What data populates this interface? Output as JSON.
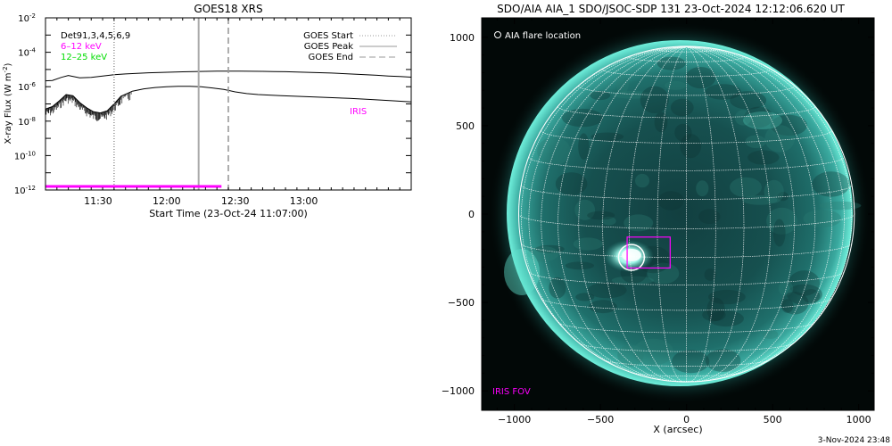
{
  "chart_data": [
    {
      "type": "line",
      "title": "GOES18 XRS",
      "xlabel": "Start Time (23-Oct-24 11:07:00)",
      "ylabel": "X-ray Flux (W m",
      "ylabel_exp": "-2",
      "ylabel_close": ")",
      "yscale": "log",
      "ylim": [
        1e-12,
        0.01
      ],
      "xlim": [
        "11:07",
        "13:47"
      ],
      "x_ticks": [
        "11:30",
        "12:00",
        "12:30",
        "13:00"
      ],
      "y_ticks": [
        {
          "base": "10",
          "exp": "-2"
        },
        {
          "base": "10",
          "exp": "-4"
        },
        {
          "base": "10",
          "exp": "-6"
        },
        {
          "base": "10",
          "exp": "-8"
        },
        {
          "base": "10",
          "exp": "-10"
        },
        {
          "base": "10",
          "exp": "-12"
        }
      ],
      "detector_label": "Det91,3,4,5,6,9",
      "series": [
        {
          "name": "6–12 keV",
          "color": "#ff00ff",
          "x": [
            "11:07",
            "11:10",
            "11:14",
            "11:17",
            "11:22",
            "11:27",
            "11:32",
            "11:37",
            "11:42",
            "11:47",
            "11:52",
            "11:57",
            "12:02",
            "12:07",
            "12:12",
            "12:17",
            "12:22",
            "12:27",
            "12:32",
            "12:37",
            "12:42",
            "12:47",
            "12:52",
            "12:57",
            "13:02",
            "13:07",
            "13:12",
            "13:17",
            "13:22",
            "13:27",
            "13:32",
            "13:37",
            "13:42",
            "13:47"
          ],
          "values": [
            2.2e-06,
            2.3e-06,
            3.5e-06,
            4.5e-06,
            3.3e-06,
            3.5e-06,
            4.2e-06,
            5e-06,
            5.5e-06,
            6e-06,
            6.4e-06,
            6.7e-06,
            7e-06,
            7.3e-06,
            7.6e-06,
            7.8e-06,
            8e-06,
            8e-06,
            8e-06,
            7.9e-06,
            7.8e-06,
            7.6e-06,
            7.4e-06,
            7.1e-06,
            6.8e-06,
            6.5e-06,
            6.2e-06,
            5.8e-06,
            5.4e-06,
            5e-06,
            4.6e-06,
            4.2e-06,
            3.9e-06,
            3.6e-06
          ]
        },
        {
          "name": "12–25 keV",
          "color": "#00dd00",
          "x": [
            "11:07",
            "11:10",
            "11:13",
            "11:16",
            "11:19",
            "11:22",
            "11:25",
            "11:28",
            "11:31",
            "11:34",
            "11:37",
            "11:40",
            "11:45",
            "11:50",
            "11:55",
            "12:00",
            "12:05",
            "12:10",
            "12:15",
            "12:20",
            "12:25",
            "12:30",
            "12:35",
            "12:40",
            "12:50",
            "13:00",
            "13:10",
            "13:20",
            "13:30",
            "13:40",
            "13:47"
          ],
          "values": [
            5e-08,
            7e-08,
            1.5e-07,
            3.5e-07,
            3e-07,
            1.2e-07,
            6e-08,
            3.5e-08,
            3e-08,
            4e-08,
            1e-07,
            2.8e-07,
            5.5e-07,
            7.5e-07,
            9e-07,
            1e-06,
            1.05e-06,
            1.05e-06,
            1e-06,
            8.5e-07,
            7e-07,
            5e-07,
            4e-07,
            3.5e-07,
            3e-07,
            2.7e-07,
            2.4e-07,
            2.1e-07,
            1.8e-07,
            1.5e-07,
            1.3e-07
          ]
        }
      ],
      "legend_colors": {
        "det": "#000000",
        "low": "#ff00ff",
        "high": "#00dd00"
      },
      "events": [
        {
          "name": "GOES Start",
          "time": "11:37",
          "style": "dotted",
          "color": "#999999"
        },
        {
          "name": "GOES Peak",
          "time": "12:14",
          "style": "solid",
          "color": "#aaaaaa"
        },
        {
          "name": "GOES End",
          "time": "12:27",
          "style": "dashed",
          "color": "#999999"
        }
      ],
      "iris": {
        "label": "IRIS",
        "color": "#ff00ff",
        "start": "11:07",
        "end": "12:24",
        "level": 1.6e-12
      }
    },
    {
      "type": "image",
      "title": "SDO/AIA AIA_1 SDO/JSOC-SDP 131 23-Oct-2024 12:12:06.620 UT",
      "xlabel": "X (arcsec)",
      "xlim": [
        -1190,
        1090
      ],
      "ylim": [
        -1110,
        1110
      ],
      "x_ticks": [
        -1000,
        -500,
        0,
        500,
        1000
      ],
      "y_ticks": [
        1000,
        500,
        0,
        -500,
        -1000
      ],
      "legend_text": "AIA flare location",
      "fov_label": "IRIS FOV",
      "fov_color": "#ff00ff",
      "flare_location": {
        "x": -320,
        "y": -245,
        "radius": 75
      },
      "iris_fov": {
        "x0": -345,
        "y0": -305,
        "x1": -95,
        "y1": -130
      },
      "solar_radius": 975,
      "colors": {
        "disk": "#1a5a58",
        "limb": "#66eed8",
        "grid": "#ffffff"
      }
    }
  ],
  "timestamp": "3-Nov-2024 23:48"
}
